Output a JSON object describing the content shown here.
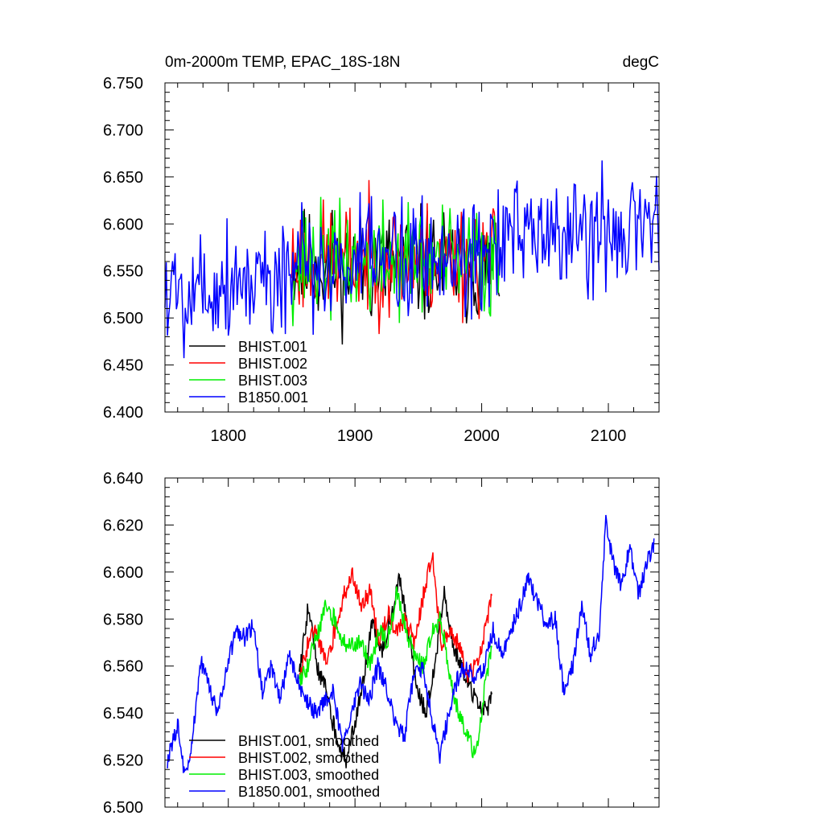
{
  "chart_data": [
    {
      "type": "line",
      "title": "0m-2000m TEMP, EPAC_18S-18N",
      "units": "degC",
      "xlim": [
        1750,
        2140
      ],
      "ylim": [
        6.4,
        6.75
      ],
      "x_ticks": [
        1800,
        1900,
        2000,
        2100
      ],
      "x_tick_labels": [
        "1800",
        "1900",
        "2000",
        "2100"
      ],
      "y_ticks": [
        6.4,
        6.45,
        6.5,
        6.55,
        6.6,
        6.65,
        6.7,
        6.75
      ],
      "y_tick_labels": [
        "6.400",
        "6.450",
        "6.500",
        "6.550",
        "6.600",
        "6.650",
        "6.700",
        "6.750"
      ],
      "legend_position": "lower-left",
      "series": [
        {
          "name": "BHIST.001",
          "color": "#000000",
          "start": 1850,
          "end": 2014,
          "mean": 6.555,
          "amp": 0.045,
          "seed": 11
        },
        {
          "name": "BHIST.002",
          "color": "#ff0000",
          "start": 1850,
          "end": 2014,
          "mean": 6.562,
          "amp": 0.045,
          "seed": 23
        },
        {
          "name": "BHIST.003",
          "color": "#00ee00",
          "start": 1850,
          "end": 2014,
          "mean": 6.56,
          "amp": 0.045,
          "seed": 37
        },
        {
          "name": "B1850.001",
          "color": "#0000ff",
          "start": 1750,
          "end": 2140,
          "mean_start": 6.53,
          "mean_end": 6.6,
          "amp": 0.05,
          "seed": 5
        }
      ]
    },
    {
      "type": "line",
      "title": "",
      "xlim": [
        1750,
        2140
      ],
      "ylim": [
        6.5,
        6.64
      ],
      "x_ticks": [
        1800,
        1900,
        2000,
        2100
      ],
      "y_ticks": [
        6.5,
        6.52,
        6.54,
        6.56,
        6.58,
        6.6,
        6.62,
        6.64
      ],
      "y_tick_labels": [
        "6.500",
        "6.520",
        "6.540",
        "6.560",
        "6.580",
        "6.600",
        "6.620",
        "6.640"
      ],
      "legend_position": "lower-left",
      "series": [
        {
          "name": "BHIST.001, smoothed",
          "color": "#000000",
          "start": 1856,
          "end": 2008,
          "knots": [
            [
              1856,
              6.555
            ],
            [
              1863,
              6.585
            ],
            [
              1870,
              6.56
            ],
            [
              1878,
              6.548
            ],
            [
              1885,
              6.53
            ],
            [
              1893,
              6.52
            ],
            [
              1900,
              6.535
            ],
            [
              1907,
              6.555
            ],
            [
              1914,
              6.58
            ],
            [
              1921,
              6.565
            ],
            [
              1928,
              6.58
            ],
            [
              1935,
              6.598
            ],
            [
              1942,
              6.575
            ],
            [
              1949,
              6.55
            ],
            [
              1956,
              6.54
            ],
            [
              1963,
              6.56
            ],
            [
              1970,
              6.592
            ],
            [
              1977,
              6.57
            ],
            [
              1984,
              6.56
            ],
            [
              1991,
              6.55
            ],
            [
              1998,
              6.545
            ],
            [
              2004,
              6.54
            ],
            [
              2008,
              6.55
            ]
          ]
        },
        {
          "name": "BHIST.002, smoothed",
          "color": "#ff0000",
          "start": 1856,
          "end": 2008,
          "knots": [
            [
              1856,
              6.552
            ],
            [
              1863,
              6.57
            ],
            [
              1870,
              6.575
            ],
            [
              1877,
              6.56
            ],
            [
              1884,
              6.575
            ],
            [
              1891,
              6.59
            ],
            [
              1898,
              6.598
            ],
            [
              1905,
              6.585
            ],
            [
              1912,
              6.592
            ],
            [
              1919,
              6.57
            ],
            [
              1926,
              6.582
            ],
            [
              1933,
              6.575
            ],
            [
              1940,
              6.58
            ],
            [
              1947,
              6.57
            ],
            [
              1954,
              6.59
            ],
            [
              1961,
              6.608
            ],
            [
              1968,
              6.57
            ],
            [
              1975,
              6.575
            ],
            [
              1982,
              6.57
            ],
            [
              1989,
              6.555
            ],
            [
              1996,
              6.562
            ],
            [
              2003,
              6.575
            ],
            [
              2008,
              6.592
            ]
          ]
        },
        {
          "name": "BHIST.003, smoothed",
          "color": "#00ee00",
          "start": 1856,
          "end": 2008,
          "knots": [
            [
              1856,
              6.552
            ],
            [
              1863,
              6.56
            ],
            [
              1870,
              6.573
            ],
            [
              1877,
              6.585
            ],
            [
              1884,
              6.58
            ],
            [
              1891,
              6.57
            ],
            [
              1898,
              6.568
            ],
            [
              1905,
              6.57
            ],
            [
              1912,
              6.56
            ],
            [
              1919,
              6.575
            ],
            [
              1926,
              6.57
            ],
            [
              1933,
              6.592
            ],
            [
              1940,
              6.575
            ],
            [
              1947,
              6.565
            ],
            [
              1954,
              6.56
            ],
            [
              1961,
              6.575
            ],
            [
              1968,
              6.58
            ],
            [
              1975,
              6.555
            ],
            [
              1982,
              6.54
            ],
            [
              1989,
              6.53
            ],
            [
              1995,
              6.522
            ],
            [
              2001,
              6.545
            ],
            [
              2008,
              6.57
            ]
          ]
        },
        {
          "name": "B1850.001, smoothed",
          "color": "#0000ff",
          "start": 1752,
          "end": 2136,
          "knots": [
            [
              1752,
              6.52
            ],
            [
              1760,
              6.535
            ],
            [
              1766,
              6.512
            ],
            [
              1772,
              6.53
            ],
            [
              1778,
              6.562
            ],
            [
              1785,
              6.55
            ],
            [
              1792,
              6.54
            ],
            [
              1799,
              6.56
            ],
            [
              1806,
              6.575
            ],
            [
              1813,
              6.572
            ],
            [
              1820,
              6.578
            ],
            [
              1827,
              6.548
            ],
            [
              1834,
              6.56
            ],
            [
              1841,
              6.545
            ],
            [
              1848,
              6.565
            ],
            [
              1855,
              6.553
            ],
            [
              1862,
              6.545
            ],
            [
              1869,
              6.54
            ],
            [
              1876,
              6.545
            ],
            [
              1883,
              6.55
            ],
            [
              1890,
              6.525
            ],
            [
              1897,
              6.54
            ],
            [
              1904,
              6.552
            ],
            [
              1911,
              6.545
            ],
            [
              1918,
              6.56
            ],
            [
              1925,
              6.55
            ],
            [
              1932,
              6.535
            ],
            [
              1939,
              6.53
            ],
            [
              1946,
              6.555
            ],
            [
              1953,
              6.56
            ],
            [
              1960,
              6.54
            ],
            [
              1967,
              6.522
            ],
            [
              1974,
              6.54
            ],
            [
              1981,
              6.555
            ],
            [
              1988,
              6.56
            ],
            [
              1995,
              6.555
            ],
            [
              2002,
              6.56
            ],
            [
              2009,
              6.575
            ],
            [
              2016,
              6.565
            ],
            [
              2023,
              6.575
            ],
            [
              2030,
              6.585
            ],
            [
              2037,
              6.597
            ],
            [
              2044,
              6.587
            ],
            [
              2051,
              6.578
            ],
            [
              2058,
              6.58
            ],
            [
              2065,
              6.548
            ],
            [
              2072,
              6.56
            ],
            [
              2079,
              6.585
            ],
            [
              2086,
              6.565
            ],
            [
              2093,
              6.575
            ],
            [
              2098,
              6.622
            ],
            [
              2103,
              6.605
            ],
            [
              2110,
              6.595
            ],
            [
              2117,
              6.61
            ],
            [
              2124,
              6.59
            ],
            [
              2131,
              6.605
            ],
            [
              2136,
              6.612
            ]
          ]
        }
      ]
    }
  ]
}
